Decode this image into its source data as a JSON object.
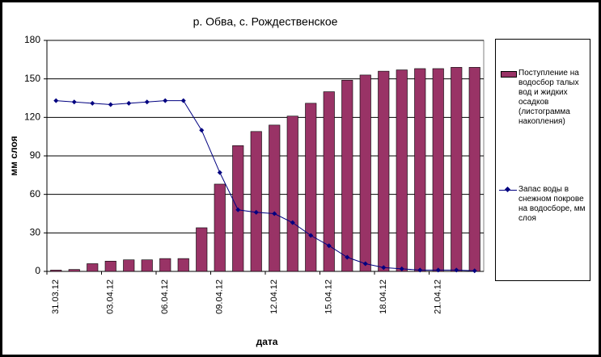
{
  "chart_data": {
    "type": "bar_line",
    "title": "р. Обва, с. Рождественское",
    "x_label": "дата",
    "y_label": "мм слоя",
    "categories": [
      "31.03.12",
      null,
      null,
      "03.04.12",
      null,
      null,
      "06.04.12",
      null,
      null,
      "09.04.12",
      null,
      null,
      "12.04.12",
      null,
      null,
      "15.04.12",
      null,
      null,
      "18.04.12",
      null,
      null,
      "21.04.12",
      null,
      null
    ],
    "series": [
      {
        "name": "Поступление на водосбор талых вод и жидких осадков (листограмма накопления)",
        "kind": "bar",
        "color": "#993366",
        "values": [
          1,
          1.5,
          6,
          8,
          9,
          9,
          10,
          10,
          34,
          68,
          98,
          109,
          114,
          121,
          131,
          140,
          149,
          153,
          156,
          157,
          158,
          158,
          159,
          159
        ]
      },
      {
        "name": "Запас воды в снежном покрове на водосборе, мм слоя",
        "kind": "line",
        "color": "#000080",
        "values": [
          133,
          132,
          131,
          130,
          131,
          132,
          133,
          133,
          110,
          77,
          48,
          46,
          45,
          38,
          28,
          20,
          11,
          6,
          3,
          2,
          1,
          1,
          1,
          0.5
        ]
      }
    ],
    "ylim": [
      0,
      180
    ],
    "yticks": [
      0,
      30,
      60,
      90,
      120,
      150,
      180
    ],
    "grid": true,
    "legend": "right"
  }
}
